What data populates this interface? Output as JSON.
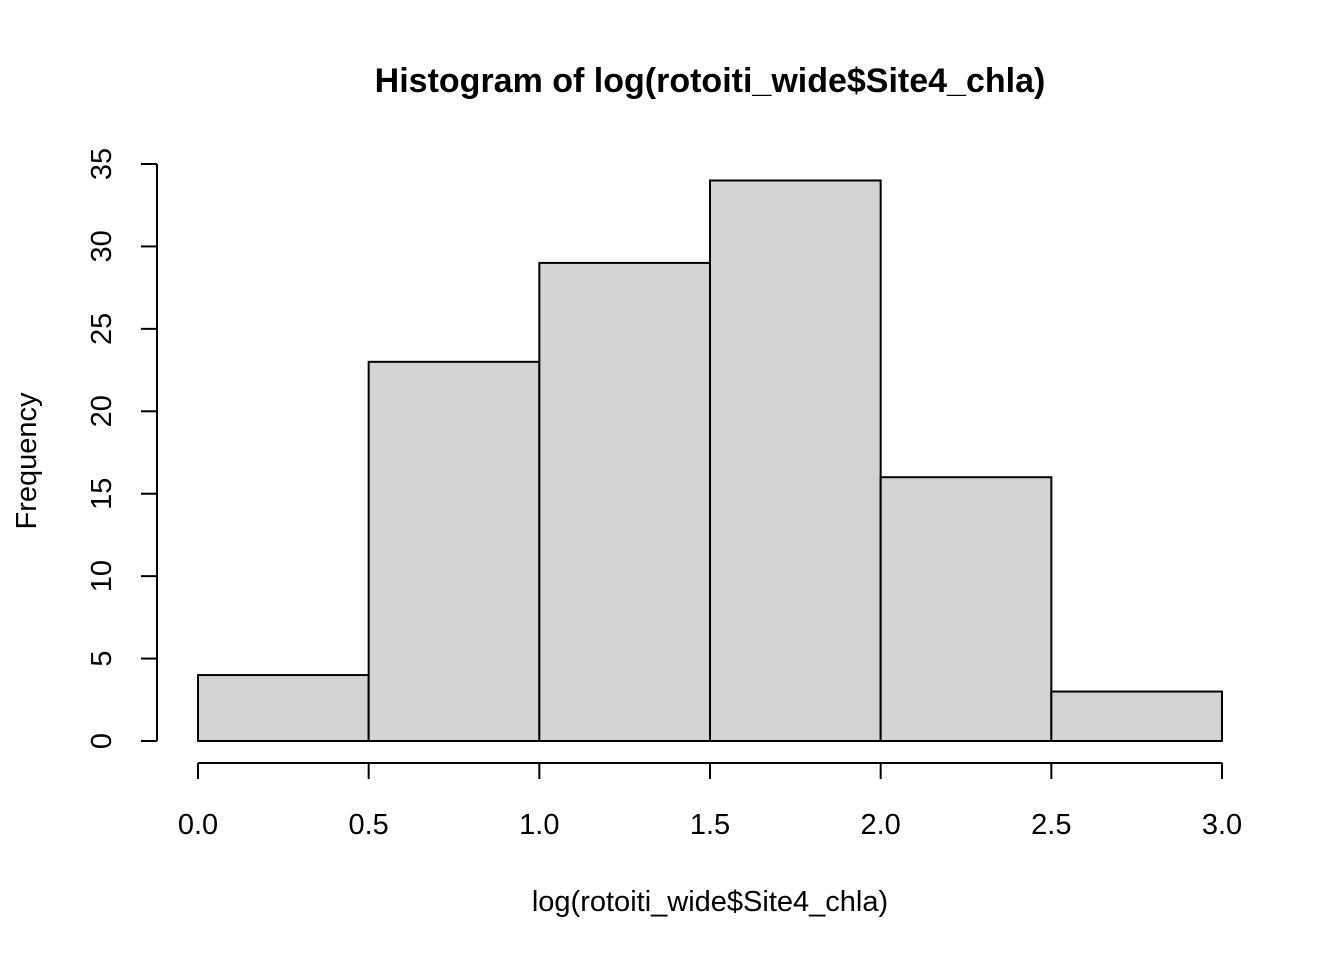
{
  "chart_data": {
    "type": "bar",
    "title": "Histogram of log(rotoiti_wide$Site4_chla)",
    "xlabel": "log(rotoiti_wide$Site4_chla)",
    "ylabel": "Frequency",
    "bins": [
      {
        "x0": 0.0,
        "x1": 0.5,
        "count": 4
      },
      {
        "x0": 0.5,
        "x1": 1.0,
        "count": 23
      },
      {
        "x0": 1.0,
        "x1": 1.5,
        "count": 29
      },
      {
        "x0": 1.5,
        "x1": 2.0,
        "count": 34
      },
      {
        "x0": 2.0,
        "x1": 2.5,
        "count": 16
      },
      {
        "x0": 2.5,
        "x1": 3.0,
        "count": 3
      }
    ],
    "xlim": [
      0,
      3
    ],
    "ylim": [
      0,
      35
    ],
    "x_ticks": [
      "0.0",
      "0.5",
      "1.0",
      "1.5",
      "2.0",
      "2.5",
      "3.0"
    ],
    "y_ticks": [
      "0",
      "5",
      "10",
      "15",
      "20",
      "25",
      "30",
      "35"
    ],
    "bar_color": "#d3d3d3",
    "grid": false
  }
}
